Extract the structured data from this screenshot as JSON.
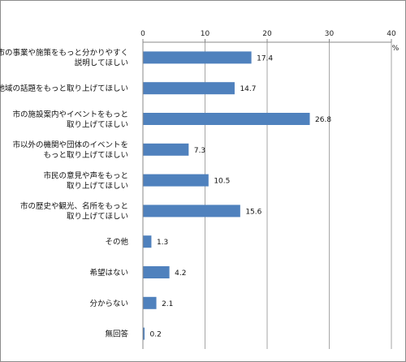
{
  "chart_data": {
    "type": "bar",
    "orientation": "horizontal",
    "unit": "%",
    "xlim": [
      0,
      40
    ],
    "xticks": [
      0,
      10,
      20,
      30,
      40
    ],
    "grid": true,
    "bar_color": "#4F81BD",
    "categories": [
      [
        "市の事業や施策をもっと分かりやすく",
        "説明してほしい"
      ],
      [
        "地域の話題をもっと取り上げてほしい"
      ],
      [
        "市の施設案内やイベントをもっと",
        "取り上げてほしい"
      ],
      [
        "市以外の機関や団体のイベントを",
        "もっと取り上げてほしい"
      ],
      [
        "市民の意見や声をもっと",
        "取り上げてほしい"
      ],
      [
        "市の歴史や観光、名所をもっと",
        "取り上げてほしい"
      ],
      [
        "その他"
      ],
      [
        "希望はない"
      ],
      [
        "分からない"
      ],
      [
        "無回答"
      ]
    ],
    "values": [
      17.4,
      14.7,
      26.8,
      7.3,
      10.5,
      15.6,
      1.3,
      4.2,
      2.1,
      0.2
    ]
  }
}
